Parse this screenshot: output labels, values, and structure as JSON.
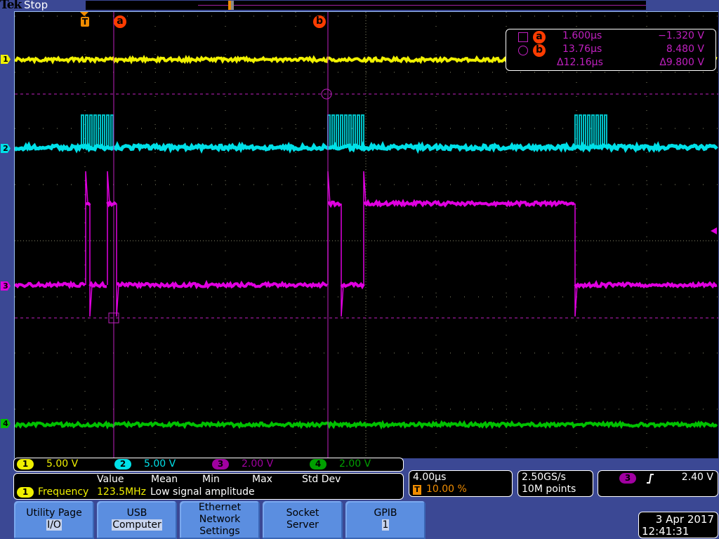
{
  "header": {
    "brand": "Tek",
    "status": "Stop"
  },
  "channels": [
    {
      "id": "1",
      "scale": "5.00 V",
      "color": "#f0f000"
    },
    {
      "id": "2",
      "scale": "5.00 V",
      "color": "#00e0e8"
    },
    {
      "id": "3",
      "scale": "2.00 V",
      "color": "#e000e0"
    },
    {
      "id": "4",
      "scale": "2.00 V",
      "color": "#00c000"
    }
  ],
  "cursors": {
    "a": {
      "label": "a",
      "time": "1.600µs",
      "voltage": "−1.320 V"
    },
    "b": {
      "label": "b",
      "time": "13.76µs",
      "voltage": "8.480 V"
    },
    "delta": {
      "time": "Δ12.16µs",
      "voltage": "Δ9.800 V"
    },
    "color": "#ff3c00"
  },
  "trigger_marker": "T",
  "measurement": {
    "headers": [
      "Value",
      "Mean",
      "Min",
      "Max",
      "Std Dev"
    ],
    "channel": "1",
    "name": "Frequency",
    "value": "123.5MHz",
    "note": "Low signal amplitude"
  },
  "horizontal": {
    "scale": "4.00µs",
    "trigger_position": "10.00 %"
  },
  "acquisition": {
    "sample_rate": "2.50GS/s",
    "record_length": "10M points"
  },
  "trigger": {
    "source": "3",
    "slope": "rising-edge-icon",
    "level": "2.40 V"
  },
  "menu": [
    {
      "line1": "Utility Page",
      "line2": "I/O"
    },
    {
      "line1": "USB",
      "line2": "Computer"
    },
    {
      "line1": "Ethernet",
      "line2": "Network",
      "line3": "Settings"
    },
    {
      "line1": "Socket",
      "line2": "Server"
    },
    {
      "line1": "GPIB",
      "line2": "1"
    }
  ],
  "datetime": {
    "date": "3 Apr 2017",
    "time": "12:41:31"
  }
}
